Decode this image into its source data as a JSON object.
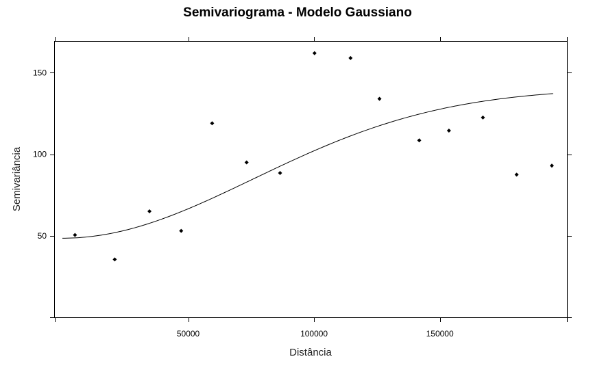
{
  "chart_data": {
    "type": "scatter",
    "title": "Semivariograma - Modelo Gaussiano",
    "xlabel": "Distância",
    "ylabel": "Semivariância",
    "xlim": [
      -3000,
      200500
    ],
    "ylim": [
      0,
      169
    ],
    "x_ticks": [
      50000,
      100000,
      150000
    ],
    "y_ticks": [
      50,
      100,
      150
    ],
    "x_tick_labels": [
      "50000",
      "100000",
      "150000"
    ],
    "y_tick_labels": [
      "50",
      "100",
      "150"
    ],
    "grid": false,
    "legend": "none",
    "colors": {
      "points": "#000000",
      "curve": "#000000",
      "frame": "#000000"
    },
    "series": [
      {
        "type": "scatter",
        "points": [
          {
            "x": 5000,
            "y": 50.5
          },
          {
            "x": 20800,
            "y": 35.5
          },
          {
            "x": 34600,
            "y": 65
          },
          {
            "x": 47200,
            "y": 53
          },
          {
            "x": 59500,
            "y": 119
          },
          {
            "x": 73200,
            "y": 95
          },
          {
            "x": 86500,
            "y": 88.5
          },
          {
            "x": 100200,
            "y": 162
          },
          {
            "x": 114500,
            "y": 159
          },
          {
            "x": 126000,
            "y": 134
          },
          {
            "x": 141800,
            "y": 108.5
          },
          {
            "x": 153600,
            "y": 114.5
          },
          {
            "x": 167100,
            "y": 122.5
          },
          {
            "x": 180500,
            "y": 87.5
          },
          {
            "x": 194500,
            "y": 93
          }
        ]
      },
      {
        "type": "line",
        "model": "gaussian",
        "nugget": 48.5,
        "psill": 92,
        "range": 107000,
        "x_from": 0,
        "x_to": 195000
      }
    ]
  }
}
